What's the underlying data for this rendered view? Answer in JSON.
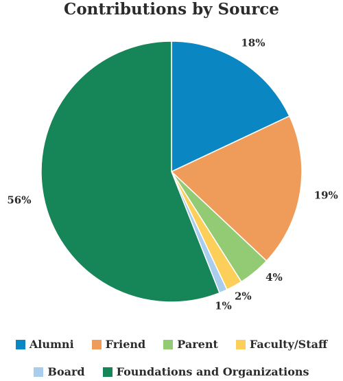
{
  "chart_data": {
    "type": "pie",
    "title": "Contributions by Source",
    "slices": [
      {
        "name": "Alumni",
        "value": 18,
        "label": "18%",
        "color": "#0a87c2"
      },
      {
        "name": "Friend",
        "value": 19,
        "label": "19%",
        "color": "#ef9b5a"
      },
      {
        "name": "Parent",
        "value": 4,
        "label": "4%",
        "color": "#93cb74"
      },
      {
        "name": "Faculty/Staff",
        "value": 2,
        "label": "2%",
        "color": "#fccf5a"
      },
      {
        "name": "Board",
        "value": 1,
        "label": "1%",
        "color": "#a9cdec"
      },
      {
        "name": "Foundations and Organizations",
        "value": 56,
        "label": "56%",
        "color": "#168558"
      }
    ],
    "legend_position": "bottom"
  }
}
